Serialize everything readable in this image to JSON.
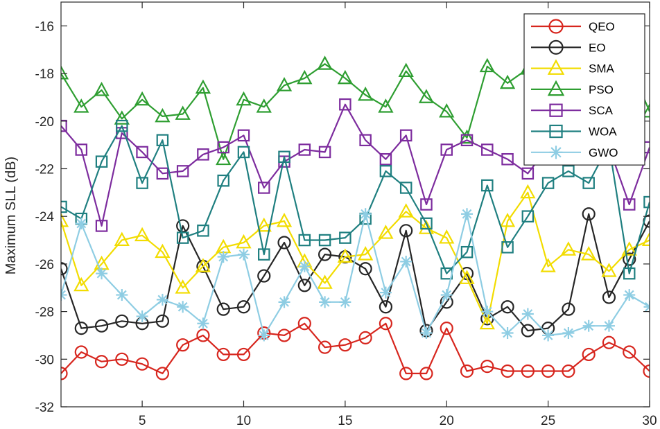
{
  "chart_data": {
    "type": "line",
    "title": "",
    "xlabel": "",
    "ylabel": "Maximum SLL (dB)",
    "xlim": [
      1,
      30
    ],
    "ylim": [
      -32,
      -15
    ],
    "xticks": [
      5,
      10,
      15,
      20,
      25,
      30
    ],
    "yticks": [
      -32,
      -30,
      -28,
      -26,
      -24,
      -22,
      -20,
      -18,
      -16
    ],
    "x": [
      1,
      2,
      3,
      4,
      5,
      6,
      7,
      8,
      9,
      10,
      11,
      12,
      13,
      14,
      15,
      16,
      17,
      18,
      19,
      20,
      21,
      22,
      23,
      24,
      25,
      26,
      27,
      28,
      29,
      30
    ],
    "legend_position": "top-right",
    "series": [
      {
        "name": "QEO",
        "color": "#d7261e",
        "marker": "circle",
        "values": [
          -30.6,
          -29.7,
          -30.1,
          -30.0,
          -30.2,
          -30.6,
          -29.4,
          -29.0,
          -29.8,
          -29.8,
          -28.9,
          -29.0,
          -28.5,
          -29.5,
          -29.4,
          -29.1,
          -28.5,
          -30.6,
          -30.6,
          -28.7,
          -30.5,
          -30.3,
          -30.5,
          -30.5,
          -30.5,
          -30.5,
          -29.8,
          -29.3,
          -29.7,
          -30.5
        ]
      },
      {
        "name": "EO",
        "color": "#262626",
        "marker": "circle",
        "values": [
          -26.2,
          -28.7,
          -28.6,
          -28.4,
          -28.5,
          -28.4,
          -24.4,
          -26.1,
          -27.9,
          -27.8,
          -26.5,
          -25.1,
          -26.9,
          -25.6,
          -25.7,
          -26.2,
          -27.8,
          -24.6,
          -28.8,
          -27.6,
          -26.4,
          -28.3,
          -27.8,
          -28.8,
          -28.7,
          -27.9,
          -23.9,
          -27.4,
          -25.8,
          -24.2
        ]
      },
      {
        "name": "SMA",
        "color": "#f2dc00",
        "marker": "triangle",
        "values": [
          -24.2,
          -26.9,
          -26.0,
          -25.0,
          -24.8,
          -25.5,
          -27.0,
          -26.1,
          -25.3,
          -25.1,
          -24.4,
          -24.2,
          -25.9,
          -26.8,
          -25.7,
          -25.6,
          -24.7,
          -23.8,
          -24.5,
          -24.9,
          -26.6,
          -28.5,
          -24.2,
          -23.0,
          -26.1,
          -25.4,
          -25.6,
          -26.3,
          -25.4,
          -25.0
        ]
      },
      {
        "name": "PSO",
        "color": "#2e9e31",
        "marker": "triangle",
        "values": [
          -18.0,
          -19.4,
          -18.7,
          -19.9,
          -19.1,
          -19.8,
          -19.7,
          -18.6,
          -21.6,
          -19.1,
          -19.4,
          -18.5,
          -18.2,
          -17.6,
          -18.2,
          -18.9,
          -19.4,
          -17.9,
          -19.0,
          -19.6,
          -20.7,
          -17.7,
          -18.4,
          -17.8,
          -21.2,
          -20.7,
          -17.4,
          -17.6,
          -17.6,
          -19.6
        ]
      },
      {
        "name": "SCA",
        "color": "#7d2c9e",
        "marker": "square",
        "values": [
          -20.2,
          -21.2,
          -24.4,
          -20.5,
          -21.3,
          -22.2,
          -22.1,
          -21.4,
          -21.1,
          -20.6,
          -22.8,
          -21.7,
          -21.2,
          -21.3,
          -19.3,
          -20.8,
          -21.6,
          -20.6,
          -23.5,
          -21.2,
          -20.8,
          -21.2,
          -21.6,
          -22.2,
          -21.1,
          -20.8,
          -21.4,
          -21.1,
          -23.5,
          -21.1
        ]
      },
      {
        "name": "WOA",
        "color": "#1f7f80",
        "marker": "square",
        "values": [
          -23.6,
          -24.1,
          -21.7,
          -20.2,
          -22.6,
          -20.8,
          -24.9,
          -24.6,
          -22.5,
          -21.3,
          -25.6,
          -21.5,
          -25.0,
          -25.0,
          -24.9,
          -24.1,
          -22.1,
          -22.8,
          -24.3,
          -26.4,
          -25.5,
          -22.7,
          -25.3,
          -24.0,
          -22.6,
          -22.1,
          -22.6,
          -21.0,
          -26.4,
          -23.4
        ]
      },
      {
        "name": "GWO",
        "color": "#8ecde3",
        "marker": "asterisk",
        "values": [
          -27.3,
          -24.3,
          -26.4,
          -27.3,
          -28.2,
          -27.5,
          -27.8,
          -28.5,
          -25.7,
          -25.6,
          -29.0,
          -27.6,
          -26.1,
          -27.6,
          -27.6,
          -23.9,
          -27.2,
          -25.9,
          -28.9,
          -27.3,
          -23.9,
          -28.0,
          -28.9,
          -28.1,
          -29.0,
          -28.9,
          -28.6,
          -28.6,
          -27.3,
          -27.8
        ]
      }
    ]
  }
}
